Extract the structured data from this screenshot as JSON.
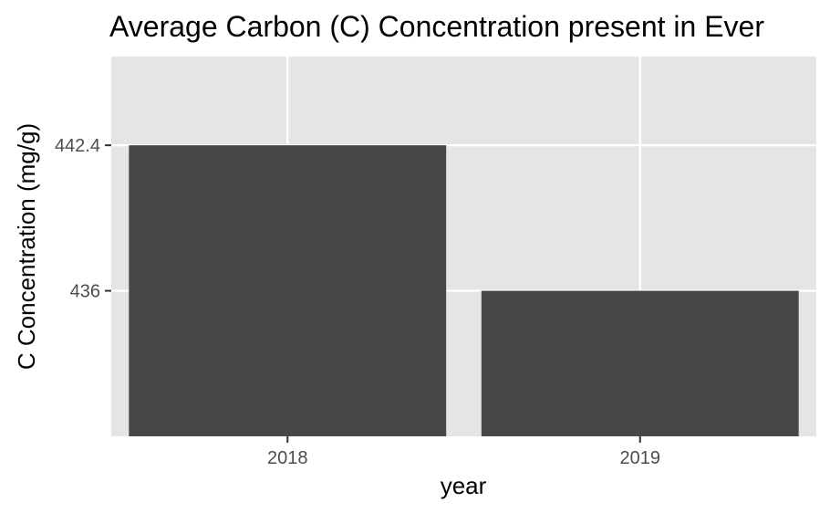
{
  "chart_data": {
    "type": "bar",
    "title": "Average Carbon (C) Concentration present in Ever",
    "xlabel": "year",
    "ylabel": "C Concentration (mg/g)",
    "categories": [
      "2018",
      "2019"
    ],
    "values": [
      442.4,
      436
    ],
    "y_ticks": [
      436,
      442.4
    ],
    "y_tick_labels": [
      "436",
      "442.4"
    ],
    "ylim": [
      429.6,
      446.3
    ],
    "grid": true,
    "bar_color": "#474747",
    "panel_color": "#e5e5e5",
    "grid_color": "#ffffff"
  }
}
